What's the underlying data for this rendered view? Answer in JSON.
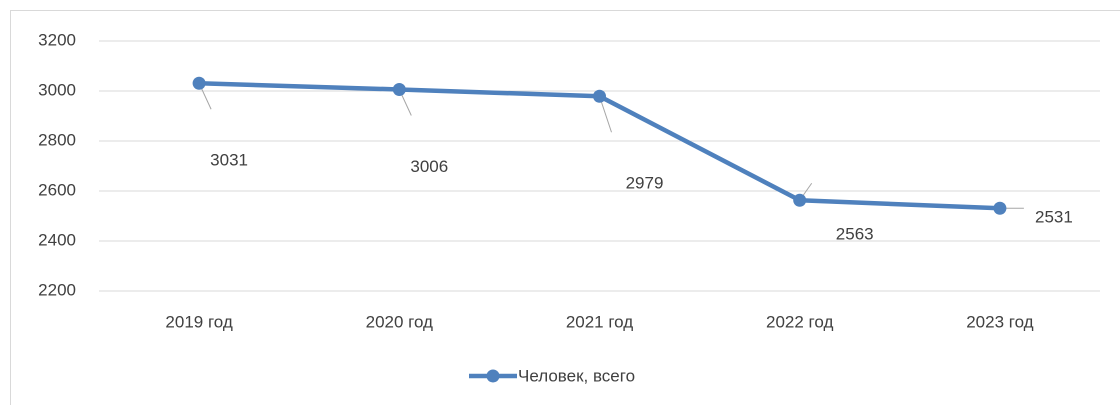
{
  "chart_data": {
    "type": "line",
    "categories": [
      "2019 год",
      "2020 год",
      "2021 год",
      "2022 год",
      "2023 год"
    ],
    "series": [
      {
        "name": "Человек, всего",
        "color": "#4f81bd",
        "values": [
          3031,
          3006,
          2979,
          2563,
          2531
        ]
      }
    ],
    "ylim": [
      2200,
      3200
    ],
    "yticks": [
      2200,
      2400,
      2600,
      2800,
      3000,
      3200
    ],
    "grid": true,
    "legend": "bottom"
  }
}
